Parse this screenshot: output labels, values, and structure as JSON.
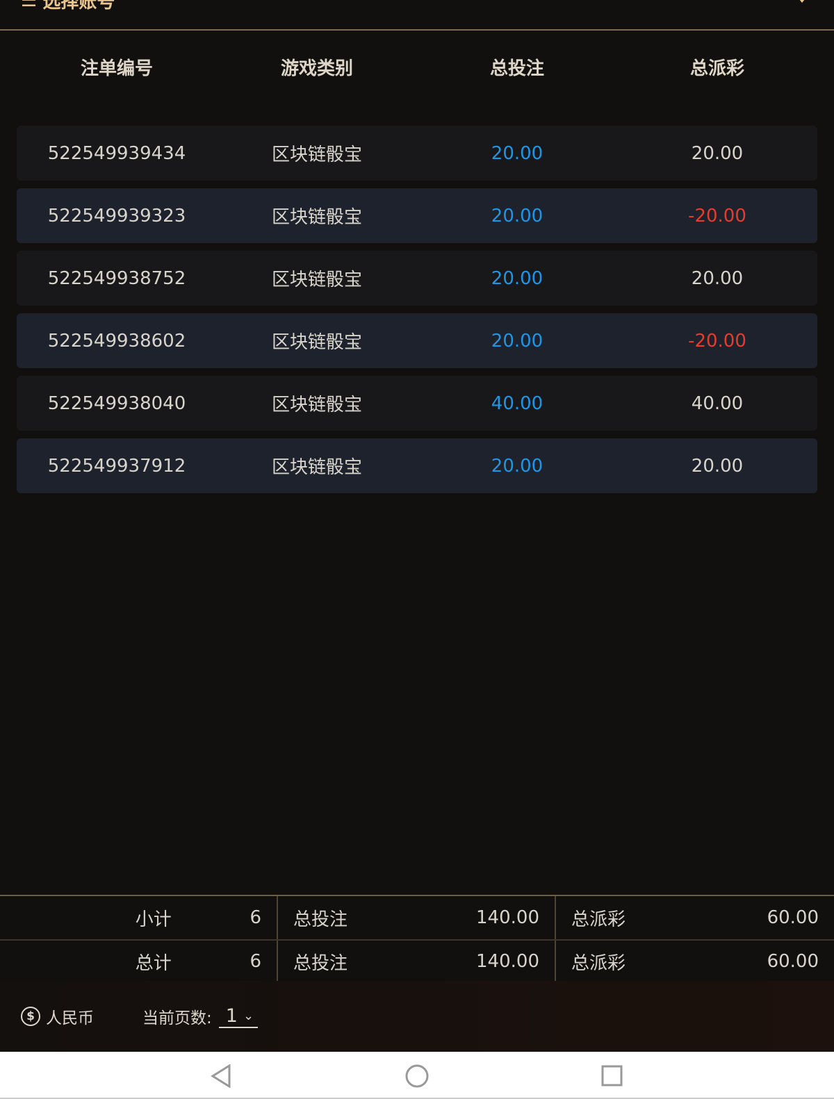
{
  "header": {
    "title": "选择账号"
  },
  "table": {
    "columns": [
      "注单编号",
      "游戏类别",
      "总投注",
      "总派彩"
    ],
    "rows": [
      {
        "id": "522549939434",
        "game": "区块链骰宝",
        "bet": "20.00",
        "payout": "20.00",
        "payout_color": "#d8d4cc"
      },
      {
        "id": "522549939323",
        "game": "区块链骰宝",
        "bet": "20.00",
        "payout": "-20.00",
        "payout_color": "#e53c2e"
      },
      {
        "id": "522549938752",
        "game": "区块链骰宝",
        "bet": "20.00",
        "payout": "20.00",
        "payout_color": "#d8d4cc"
      },
      {
        "id": "522549938602",
        "game": "区块链骰宝",
        "bet": "20.00",
        "payout": "-20.00",
        "payout_color": "#e53c2e"
      },
      {
        "id": "522549938040",
        "game": "区块链骰宝",
        "bet": "40.00",
        "payout": "40.00",
        "payout_color": "#d8d4cc"
      },
      {
        "id": "522549937912",
        "game": "区块链骰宝",
        "bet": "20.00",
        "payout": "20.00",
        "payout_color": "#d8d4cc"
      }
    ]
  },
  "summary": [
    {
      "label": "小计",
      "count": "6",
      "bet_label": "总投注",
      "bet": "140.00",
      "payout_label": "总派彩",
      "payout": "60.00"
    },
    {
      "label": "总计",
      "count": "6",
      "bet_label": "总投注",
      "bet": "140.00",
      "payout_label": "总派彩",
      "payout": "60.00"
    }
  ],
  "footer": {
    "currency_icon": "dollar-circle-icon",
    "currency": "人民币",
    "page_label": "当前页数:",
    "page": "1"
  },
  "colors": {
    "bet": "#1e96e6",
    "negative": "#e53c2e",
    "accent": "#e8c68e"
  }
}
